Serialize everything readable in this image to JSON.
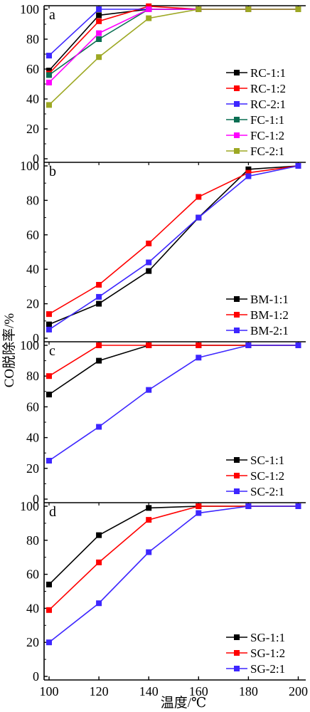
{
  "chart_data": {
    "type": "line",
    "xlabel": "温度/℃",
    "ylabel": "CO脱除率/%",
    "x_ticks": [
      100,
      120,
      140,
      160,
      180,
      200
    ],
    "y_ticks": [
      0,
      20,
      40,
      60,
      80,
      100
    ],
    "xlim": [
      98,
      203
    ],
    "ylim": [
      0,
      102
    ],
    "legend_position": "bottom-right",
    "colors": {
      "black": "#000000",
      "red": "#ff0000",
      "blue": "#3d26ff",
      "teal": "#0a6e52",
      "magenta": "#ff00ff",
      "olive": "#9da823"
    },
    "panels": [
      {
        "letter": "a",
        "series": [
          {
            "name": "RC-1:1",
            "color": "black",
            "x": [
              100,
              120,
              140,
              160,
              180,
              200
            ],
            "y": [
              59,
              96,
              100,
              100,
              100,
              100
            ]
          },
          {
            "name": "RC-1:2",
            "color": "red",
            "x": [
              100,
              120,
              140,
              160,
              180,
              200
            ],
            "y": [
              57,
              92,
              102,
              100,
              100,
              100
            ]
          },
          {
            "name": "RC-2:1",
            "color": "blue",
            "x": [
              100,
              120,
              140,
              160,
              180,
              200
            ],
            "y": [
              69,
              100,
              100,
              100,
              100,
              100
            ]
          },
          {
            "name": "FC-1:1",
            "color": "teal",
            "x": [
              100,
              120,
              140,
              160,
              180,
              200
            ],
            "y": [
              56,
              80,
              100,
              100,
              100,
              100
            ]
          },
          {
            "name": "FC-1:2",
            "color": "magenta",
            "x": [
              100,
              120,
              140,
              160,
              180,
              200
            ],
            "y": [
              51,
              84,
              100,
              100,
              100,
              100
            ]
          },
          {
            "name": "FC-2:1",
            "color": "olive",
            "x": [
              100,
              120,
              140,
              160,
              180,
              200
            ],
            "y": [
              36,
              68,
              94,
              100,
              100,
              100
            ]
          }
        ]
      },
      {
        "letter": "b",
        "series": [
          {
            "name": "BM-1:1",
            "color": "black",
            "x": [
              100,
              120,
              140,
              160,
              180,
              200
            ],
            "y": [
              8,
              20,
              39,
              70,
              98,
              100
            ]
          },
          {
            "name": "BM-1:2",
            "color": "red",
            "x": [
              100,
              120,
              140,
              160,
              180,
              200
            ],
            "y": [
              14,
              31,
              55,
              82,
              96,
              100
            ]
          },
          {
            "name": "BM-2:1",
            "color": "blue",
            "x": [
              100,
              120,
              140,
              160,
              180,
              200
            ],
            "y": [
              5,
              24,
              44,
              70,
              94,
              100
            ]
          }
        ]
      },
      {
        "letter": "c",
        "series": [
          {
            "name": "SC-1:1",
            "color": "black",
            "x": [
              100,
              120,
              140,
              160,
              180,
              200
            ],
            "y": [
              68,
              90,
              100,
              100,
              100,
              100
            ]
          },
          {
            "name": "SC-1:2",
            "color": "red",
            "x": [
              100,
              120,
              140,
              160,
              180,
              200
            ],
            "y": [
              80,
              100,
              100,
              100,
              100,
              100
            ]
          },
          {
            "name": "SC-2:1",
            "color": "blue",
            "x": [
              100,
              120,
              140,
              160,
              180,
              200
            ],
            "y": [
              25,
              47,
              71,
              92,
              100,
              100
            ]
          }
        ]
      },
      {
        "letter": "d",
        "series": [
          {
            "name": "SG-1:1",
            "color": "black",
            "x": [
              100,
              120,
              140,
              160,
              180,
              200
            ],
            "y": [
              54,
              83,
              99,
              100,
              100,
              100
            ]
          },
          {
            "name": "SG-1:2",
            "color": "red",
            "x": [
              100,
              120,
              140,
              160,
              180,
              200
            ],
            "y": [
              39,
              67,
              92,
              100,
              100,
              100
            ]
          },
          {
            "name": "SG-2:1",
            "color": "blue",
            "x": [
              100,
              120,
              140,
              160,
              180,
              200
            ],
            "y": [
              20,
              43,
              73,
              96,
              100,
              100
            ]
          }
        ]
      }
    ]
  }
}
